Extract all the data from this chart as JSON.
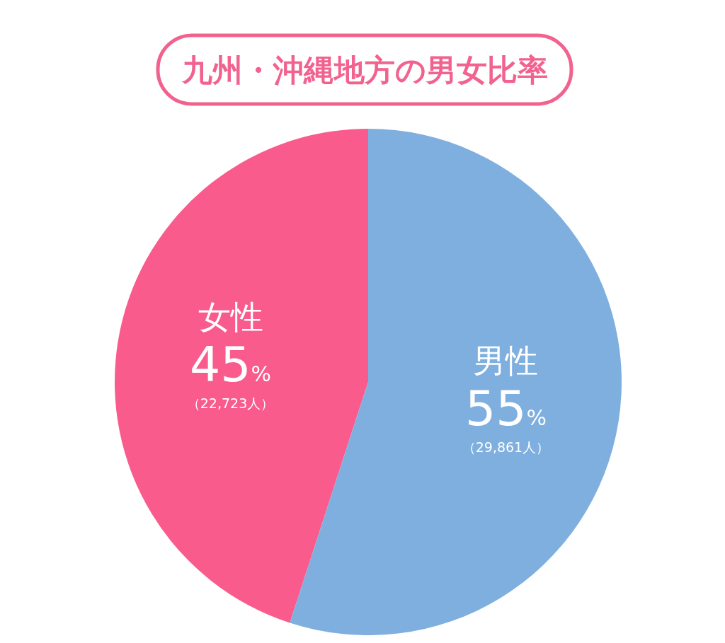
{
  "chart_data": {
    "type": "pie",
    "title": "九州・沖縄地方の男女比率",
    "categories": [
      "女性",
      "男性"
    ],
    "values": [
      45,
      55
    ],
    "colors": [
      "#f95b8c",
      "#7eafdf"
    ],
    "value_labels": [
      "45%",
      "55%"
    ],
    "annotations": [
      "（22,723人）",
      "（29,861人）"
    ],
    "legend": false
  }
}
